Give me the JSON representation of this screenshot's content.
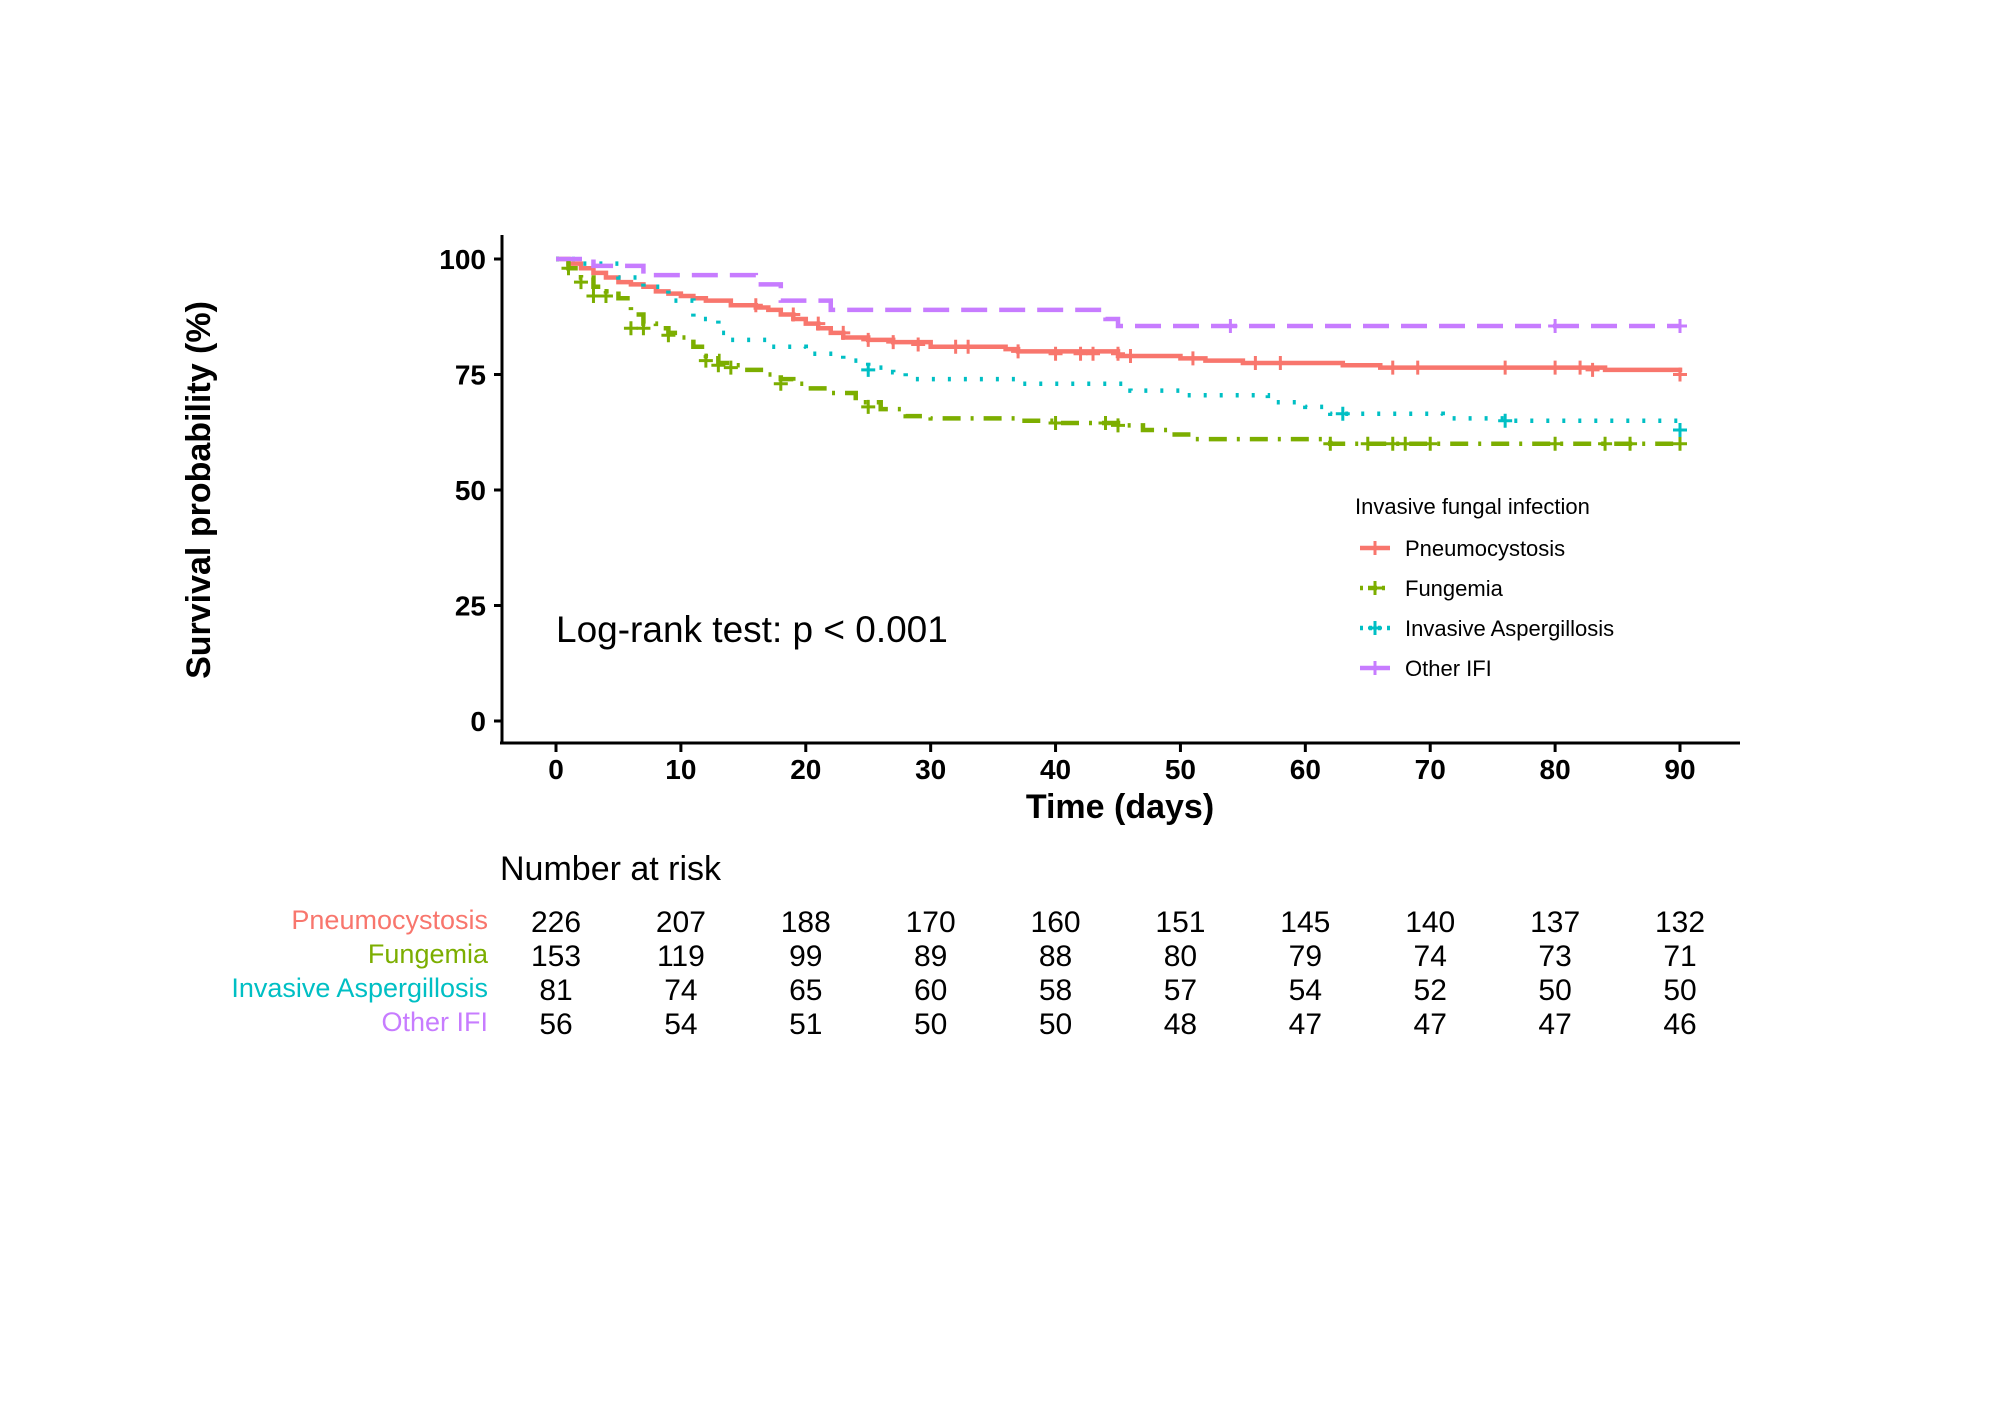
{
  "chart_data": {
    "type": "line",
    "subtype": "kaplan-meier step",
    "xlabel": "Time (days)",
    "ylabel": "Survival probability (%)",
    "xlim": [
      0,
      90
    ],
    "ylim": [
      0,
      100
    ],
    "x_ticks": [
      0,
      10,
      20,
      30,
      40,
      50,
      60,
      70,
      80,
      90
    ],
    "y_ticks": [
      0,
      25,
      50,
      75,
      100
    ],
    "grid": false,
    "annotation": "Log-rank test: p < 0.001",
    "legend": {
      "title": "Invasive fungal infection",
      "position": "right"
    },
    "series": [
      {
        "name": "Pneumocystosis",
        "color": "#F8766D",
        "dash": "solid",
        "steps": [
          [
            0,
            100
          ],
          [
            1,
            99
          ],
          [
            2,
            98
          ],
          [
            3,
            97
          ],
          [
            4,
            96
          ],
          [
            5,
            95
          ],
          [
            6,
            94.5
          ],
          [
            7,
            94
          ],
          [
            8,
            93
          ],
          [
            9,
            92.5
          ],
          [
            10,
            92
          ],
          [
            11,
            91.5
          ],
          [
            12,
            91
          ],
          [
            14,
            90
          ],
          [
            16,
            89.5
          ],
          [
            17,
            89
          ],
          [
            18,
            88
          ],
          [
            19,
            87
          ],
          [
            20,
            86
          ],
          [
            21,
            85
          ],
          [
            22,
            84
          ],
          [
            23,
            83
          ],
          [
            25,
            82.5
          ],
          [
            27,
            82
          ],
          [
            30,
            81
          ],
          [
            36,
            80.5
          ],
          [
            37,
            80
          ],
          [
            45,
            79
          ],
          [
            50,
            78.5
          ],
          [
            52,
            78
          ],
          [
            55,
            77.5
          ],
          [
            63,
            77
          ],
          [
            66,
            76.5
          ],
          [
            70,
            76.5
          ],
          [
            84,
            76
          ],
          [
            90,
            75.5
          ]
        ],
        "censored": [
          [
            16,
            90
          ],
          [
            19,
            88
          ],
          [
            21,
            86
          ],
          [
            23,
            84
          ],
          [
            25,
            82.5
          ],
          [
            27,
            82
          ],
          [
            29,
            81.5
          ],
          [
            32,
            81
          ],
          [
            33,
            81
          ],
          [
            37,
            80
          ],
          [
            40,
            79.5
          ],
          [
            42,
            79.5
          ],
          [
            43,
            79.5
          ],
          [
            45,
            79.5
          ],
          [
            46,
            79
          ],
          [
            51,
            78.5
          ],
          [
            56,
            77.5
          ],
          [
            58,
            77.5
          ],
          [
            67,
            76.5
          ],
          [
            69,
            76.5
          ],
          [
            76,
            76.5
          ],
          [
            80,
            76.5
          ],
          [
            82,
            76.5
          ],
          [
            83,
            76
          ],
          [
            90,
            75
          ]
        ]
      },
      {
        "name": "Fungemia",
        "color": "#7CAE00",
        "dash": "dotdash",
        "steps": [
          [
            0,
            100
          ],
          [
            1,
            98
          ],
          [
            2,
            96
          ],
          [
            3,
            94
          ],
          [
            4,
            93
          ],
          [
            5,
            91.5
          ],
          [
            6,
            88
          ],
          [
            7,
            86
          ],
          [
            8,
            85
          ],
          [
            9,
            84
          ],
          [
            10,
            83
          ],
          [
            11,
            81
          ],
          [
            12,
            79
          ],
          [
            13,
            77.5
          ],
          [
            14,
            77
          ],
          [
            15,
            76
          ],
          [
            17,
            75
          ],
          [
            18,
            74
          ],
          [
            19,
            73
          ],
          [
            20,
            72
          ],
          [
            22,
            71
          ],
          [
            24,
            69
          ],
          [
            26,
            67.5
          ],
          [
            28,
            66
          ],
          [
            30,
            65.5
          ],
          [
            34,
            65.5
          ],
          [
            37,
            65
          ],
          [
            40,
            64.5
          ],
          [
            45,
            64
          ],
          [
            47,
            63
          ],
          [
            49,
            62
          ],
          [
            51,
            61
          ],
          [
            55,
            61
          ],
          [
            60,
            61
          ],
          [
            62,
            60
          ],
          [
            90,
            60
          ]
        ],
        "censored": [
          [
            1,
            98
          ],
          [
            2,
            95
          ],
          [
            3,
            92
          ],
          [
            4,
            92
          ],
          [
            6,
            85
          ],
          [
            7,
            85
          ],
          [
            9,
            83.5
          ],
          [
            12,
            78
          ],
          [
            13,
            77
          ],
          [
            14,
            76.5
          ],
          [
            18,
            73
          ],
          [
            25,
            68
          ],
          [
            40,
            64.5
          ],
          [
            44,
            64.5
          ],
          [
            45,
            64
          ],
          [
            62,
            60
          ],
          [
            65,
            60
          ],
          [
            67,
            60
          ],
          [
            68,
            60
          ],
          [
            70,
            60
          ],
          [
            80,
            60
          ],
          [
            84,
            60
          ],
          [
            86,
            60
          ],
          [
            90,
            60
          ]
        ]
      },
      {
        "name": "Invasive Aspergillosis",
        "color": "#00BFC4",
        "dash": "dotted",
        "steps": [
          [
            0,
            100
          ],
          [
            2,
            99
          ],
          [
            5,
            96
          ],
          [
            7,
            94
          ],
          [
            9,
            91
          ],
          [
            11,
            87
          ],
          [
            13,
            84
          ],
          [
            14,
            82.5
          ],
          [
            17,
            81
          ],
          [
            20,
            79.5
          ],
          [
            23,
            78
          ],
          [
            25,
            76.5
          ],
          [
            27,
            75.5
          ],
          [
            28,
            74
          ],
          [
            37,
            73
          ],
          [
            46,
            71.5
          ],
          [
            50,
            70.5
          ],
          [
            57,
            69
          ],
          [
            60,
            68
          ],
          [
            62,
            66.5
          ],
          [
            71,
            65.5
          ],
          [
            76,
            65
          ],
          [
            90,
            65
          ]
        ],
        "censored": [
          [
            25,
            76
          ],
          [
            63,
            66.5
          ],
          [
            76,
            65
          ],
          [
            90,
            63
          ]
        ]
      },
      {
        "name": "Other IFI",
        "color": "#C77CFF",
        "dash": "dashed",
        "steps": [
          [
            0,
            100
          ],
          [
            3,
            98.5
          ],
          [
            7,
            96.5
          ],
          [
            16,
            94.5
          ],
          [
            18,
            91
          ],
          [
            22,
            89
          ],
          [
            44,
            87
          ],
          [
            45,
            85.5
          ],
          [
            90,
            85.5
          ]
        ],
        "censored": [
          [
            54,
            85.5
          ],
          [
            80,
            85.5
          ],
          [
            90,
            85.5
          ]
        ]
      }
    ]
  },
  "risk_table": {
    "title": "Number at risk",
    "times": [
      0,
      10,
      20,
      30,
      40,
      50,
      60,
      70,
      80,
      90
    ],
    "rows": [
      {
        "name": "Pneumocystosis",
        "color": "#F8766D",
        "values": [
          "226",
          "207",
          "188",
          "170",
          "160",
          "151",
          "145",
          "140",
          "137",
          "132"
        ]
      },
      {
        "name": "Fungemia",
        "color": "#7CAE00",
        "values": [
          "153",
          "119",
          "99",
          "89",
          "88",
          "80",
          "79",
          "74",
          "73",
          "71"
        ]
      },
      {
        "name": "Invasive Aspergillosis",
        "color": "#00BFC4",
        "values": [
          "81",
          "74",
          "65",
          "60",
          "58",
          "57",
          "54",
          "52",
          "50",
          "50"
        ]
      },
      {
        "name": "Other IFI",
        "color": "#C77CFF",
        "values": [
          "56",
          "54",
          "51",
          "50",
          "50",
          "48",
          "47",
          "47",
          "47",
          "46"
        ]
      }
    ]
  }
}
